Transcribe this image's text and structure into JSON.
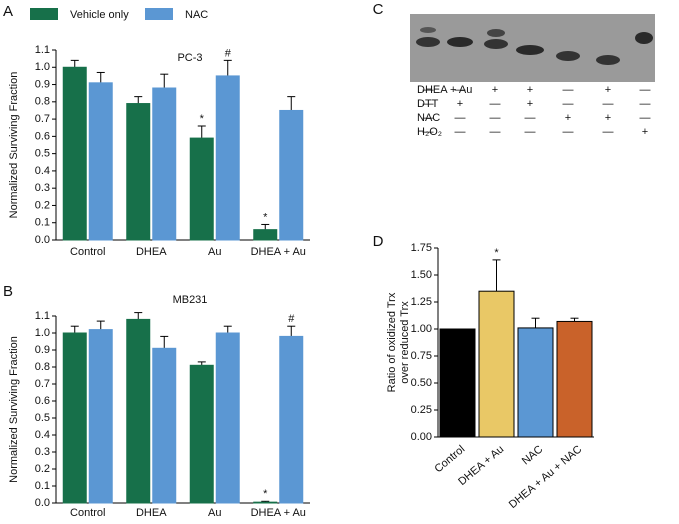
{
  "chart_data": [
    {
      "type": "bar",
      "panel": "A",
      "title": "PC-3",
      "ylabel": "Normalized Surviving Fraction",
      "categories": [
        "Control",
        "DHEA",
        "Au",
        "DHEA + Au"
      ],
      "series": [
        {
          "name": "Vehicle only",
          "color": "#17704a",
          "values": [
            1.0,
            0.79,
            0.59,
            0.06
          ],
          "errors": [
            0.04,
            0.04,
            0.07,
            0.03
          ],
          "markers": [
            null,
            null,
            "*",
            "*"
          ]
        },
        {
          "name": "NAC",
          "color": "#5b97d3",
          "values": [
            0.91,
            0.88,
            0.95,
            0.75
          ],
          "errors": [
            0.06,
            0.08,
            0.09,
            0.08
          ],
          "markers": [
            null,
            null,
            "#",
            null
          ]
        }
      ],
      "ylim": [
        0,
        1.1
      ],
      "yticks": [
        {
          "value": 0,
          "label": "0.0"
        },
        0.1,
        0.2,
        0.3,
        0.4,
        0.5,
        0.6,
        0.7,
        0.8,
        0.9,
        {
          "value": 1,
          "label": "1.0"
        },
        1.1
      ]
    },
    {
      "type": "bar",
      "panel": "B",
      "title": "MB231",
      "ylabel": "Normalized Surviving Fraction",
      "categories": [
        "Control",
        "DHEA",
        "Au",
        "DHEA + Au"
      ],
      "series": [
        {
          "color": "#17704a",
          "values": [
            1.0,
            1.08,
            0.81,
            0.005
          ],
          "errors": [
            0.04,
            0.04,
            0.02,
            0.005
          ],
          "markers": [
            null,
            null,
            null,
            "*"
          ]
        },
        {
          "color": "#5b97d3",
          "values": [
            1.02,
            0.91,
            1.0,
            0.98
          ],
          "errors": [
            0.05,
            0.07,
            0.04,
            0.06
          ],
          "markers": [
            null,
            null,
            null,
            "#"
          ]
        }
      ],
      "ylim": [
        0,
        1.1
      ],
      "yticks": [
        {
          "value": 0,
          "label": "0.0"
        },
        0.1,
        0.2,
        0.3,
        0.4,
        0.5,
        0.6,
        0.7,
        0.8,
        0.9,
        {
          "value": 1,
          "label": "1.0"
        },
        1.1
      ]
    },
    {
      "type": "bar",
      "panel": "D",
      "ylabel": [
        "Ratio of oxidized Trx",
        "over reduced Trx"
      ],
      "categories": [
        "Control",
        "DHEA + Au",
        "NAC",
        "DHEA + Au + NAC"
      ],
      "series": [
        {
          "colors": [
            "#000000",
            "#e9c866",
            "#5b97d3",
            "#c9622a"
          ],
          "values": [
            1.0,
            1.35,
            1.01,
            1.07
          ],
          "errors": [
            0,
            0.29,
            0.09,
            0.03
          ],
          "markers": [
            null,
            "*",
            null,
            null
          ]
        }
      ],
      "ylim": [
        0,
        1.75
      ],
      "yticks": [
        {
          "value": 0,
          "label": "0.00"
        },
        {
          "value": 0.25,
          "label": "0.25"
        },
        {
          "value": 0.5,
          "label": "0.50"
        },
        {
          "value": 0.75,
          "label": "0.75"
        },
        {
          "value": 1,
          "label": "1.00"
        },
        {
          "value": 1.25,
          "label": "1.25"
        },
        {
          "value": 1.5,
          "label": "1.50"
        },
        {
          "value": 1.75,
          "label": "1.75"
        }
      ]
    }
  ],
  "panel_c": {
    "panel": "C",
    "rows": [
      {
        "label": "DHEA + Au",
        "marks": [
          "—",
          "—",
          "+",
          "+",
          "—",
          "+",
          "—"
        ]
      },
      {
        "label": "DTT",
        "marks": [
          "—",
          "+",
          "—",
          "+",
          "—",
          "—",
          "—"
        ]
      },
      {
        "label": "NAC",
        "marks": [
          "—",
          "—",
          "—",
          "—",
          "+",
          "+",
          "—"
        ]
      },
      {
        "label": "H₂O₂",
        "marks": [
          "—",
          "—",
          "—",
          "—",
          "—",
          "—",
          "+"
        ]
      }
    ]
  }
}
